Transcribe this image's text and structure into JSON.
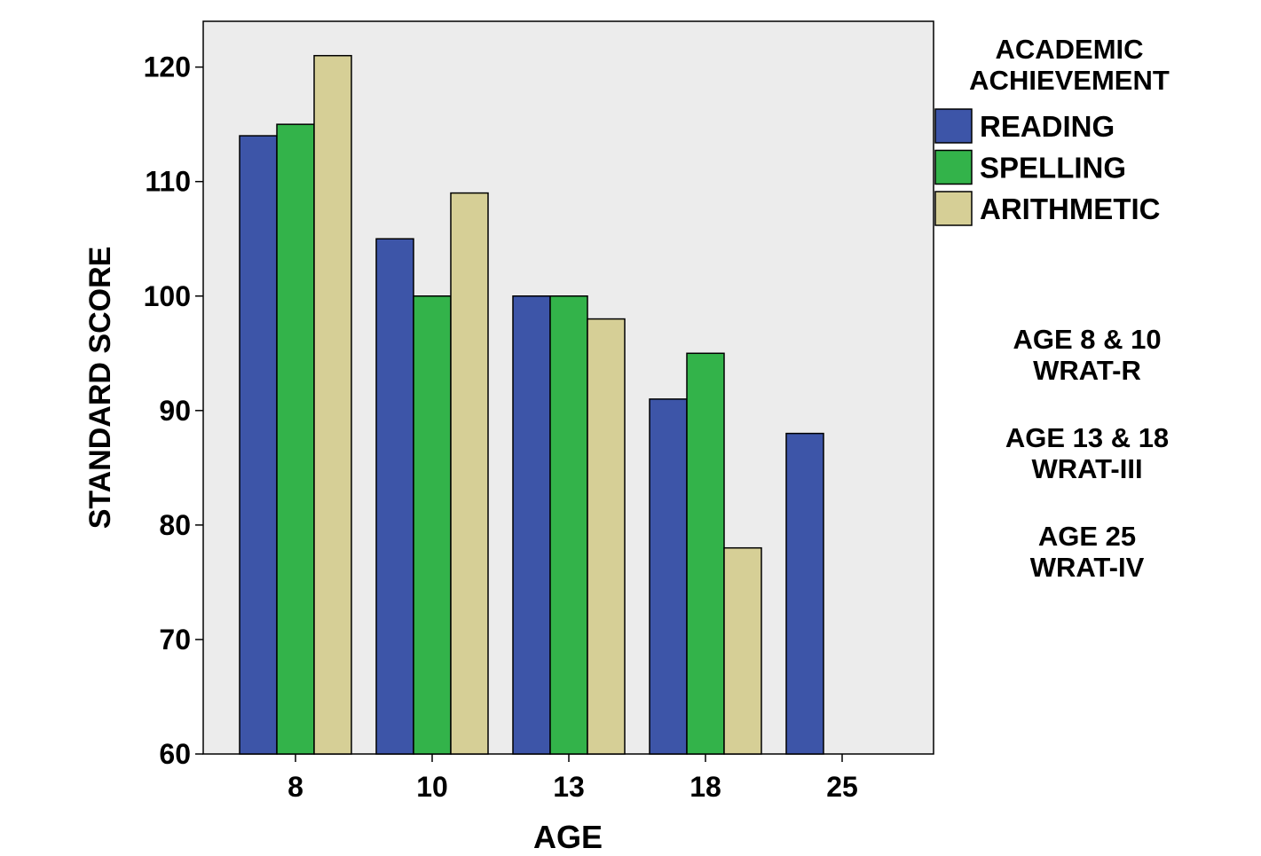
{
  "chart_data": {
    "type": "bar",
    "categories": [
      "8",
      "10",
      "13",
      "18",
      "25"
    ],
    "series": [
      {
        "name": "READING",
        "values": [
          114,
          105,
          100,
          91,
          88
        ],
        "color": "#3d55a8"
      },
      {
        "name": "SPELLING",
        "values": [
          115,
          100,
          100,
          95,
          null
        ],
        "color": "#33b34a"
      },
      {
        "name": "ARITHMETIC",
        "values": [
          121,
          109,
          98,
          78,
          null
        ],
        "color": "#d6cf96"
      }
    ],
    "xlabel": "AGE",
    "ylabel": "STANDARD SCORE",
    "ylim": [
      60,
      124
    ],
    "yticks": [
      60,
      70,
      80,
      90,
      100,
      110,
      120
    ],
    "legend_title": [
      "ACADEMIC",
      "ACHIEVEMENT"
    ],
    "legend_position": "top-right, outside plot",
    "annotations": [
      {
        "line1": "AGE 8 & 10",
        "line2": "WRAT-R"
      },
      {
        "line1": "AGE 13 & 18",
        "line2": "WRAT-III"
      },
      {
        "line1": "AGE 25",
        "line2": "WRAT-IV"
      }
    ],
    "plot_background": "#ececec",
    "grid": false
  }
}
